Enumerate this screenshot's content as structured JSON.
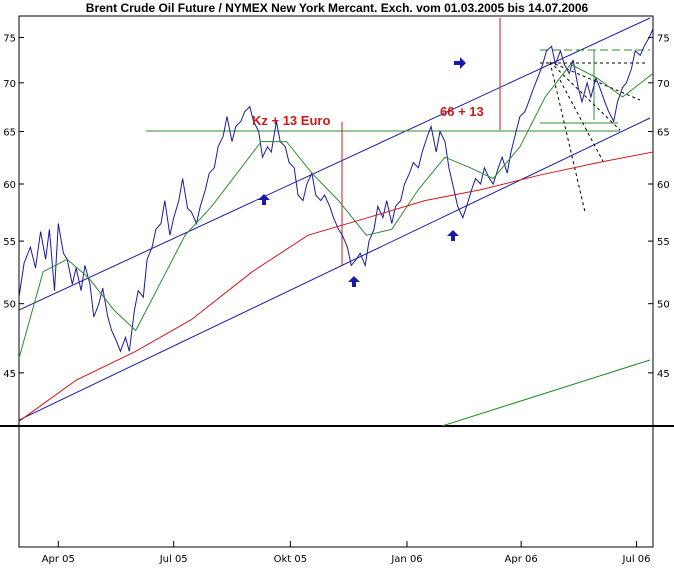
{
  "chart_data": {
    "type": "line",
    "title": "Brent Crude Oil Future / NYMEX New York Mercant. Exch. vom 01.03.2005 bis 14.07.2006",
    "x_tick_labels": [
      "Apr 05",
      "Jul 05",
      "Okt 05",
      "Jan 06",
      "Apr 06",
      "Jul 06"
    ],
    "x_tick_dates": [
      "2005-04-01",
      "2005-07-01",
      "2005-10-01",
      "2006-01-01",
      "2006-04-01",
      "2006-07-01"
    ],
    "xlim": [
      "2005-03-01",
      "2006-07-14"
    ],
    "y_scale": "log",
    "y_ticks": [
      45,
      50,
      55,
      60,
      65,
      70,
      75
    ],
    "ylim": [
      41.5,
      77.5
    ],
    "grid": false,
    "series": [
      {
        "color": "#1a1aa6",
        "points": [
          [
            "2005-03-01",
            50.5
          ],
          [
            "2005-03-05",
            53.2
          ],
          [
            "2005-03-10",
            54.5
          ],
          [
            "2005-03-14",
            52.8
          ],
          [
            "2005-03-18",
            55.8
          ],
          [
            "2005-03-22",
            53.5
          ],
          [
            "2005-03-25",
            56.0
          ],
          [
            "2005-03-29",
            51.0
          ],
          [
            "2005-04-01",
            56.5
          ],
          [
            "2005-04-05",
            54.0
          ],
          [
            "2005-04-08",
            53.5
          ],
          [
            "2005-04-12",
            51.5
          ],
          [
            "2005-04-15",
            52.8
          ],
          [
            "2005-04-19",
            51.0
          ],
          [
            "2005-04-22",
            53.0
          ],
          [
            "2005-04-26",
            51.5
          ],
          [
            "2005-04-29",
            49.0
          ],
          [
            "2005-05-03",
            50.0
          ],
          [
            "2005-05-06",
            51.2
          ],
          [
            "2005-05-10",
            49.0
          ],
          [
            "2005-05-13",
            48.0
          ],
          [
            "2005-05-17",
            47.2
          ],
          [
            "2005-05-20",
            46.5
          ],
          [
            "2005-05-24",
            47.5
          ],
          [
            "2005-05-27",
            46.5
          ],
          [
            "2005-05-31",
            49.5
          ],
          [
            "2005-06-03",
            51.0
          ],
          [
            "2005-06-07",
            50.5
          ],
          [
            "2005-06-10",
            53.5
          ],
          [
            "2005-06-14",
            54.5
          ],
          [
            "2005-06-17",
            56.0
          ],
          [
            "2005-06-21",
            56.5
          ],
          [
            "2005-06-24",
            58.5
          ],
          [
            "2005-06-28",
            55.5
          ],
          [
            "2005-07-01",
            57.0
          ],
          [
            "2005-07-05",
            58.5
          ],
          [
            "2005-07-08",
            60.5
          ],
          [
            "2005-07-12",
            57.8
          ],
          [
            "2005-07-15",
            57.5
          ],
          [
            "2005-07-19",
            56.5
          ],
          [
            "2005-07-22",
            58.0
          ],
          [
            "2005-07-26",
            59.5
          ],
          [
            "2005-07-29",
            61.0
          ],
          [
            "2005-08-02",
            61.5
          ],
          [
            "2005-08-05",
            63.5
          ],
          [
            "2005-08-09",
            64.5
          ],
          [
            "2005-08-12",
            66.5
          ],
          [
            "2005-08-16",
            64.0
          ],
          [
            "2005-08-19",
            65.5
          ],
          [
            "2005-08-23",
            66.0
          ],
          [
            "2005-08-26",
            67.0
          ],
          [
            "2005-08-30",
            67.5
          ],
          [
            "2005-09-02",
            66.0
          ],
          [
            "2005-09-06",
            65.0
          ],
          [
            "2005-09-09",
            62.5
          ],
          [
            "2005-09-13",
            63.5
          ],
          [
            "2005-09-16",
            63.0
          ],
          [
            "2005-09-20",
            66.0
          ],
          [
            "2005-09-23",
            64.0
          ],
          [
            "2005-09-27",
            63.5
          ],
          [
            "2005-09-30",
            62.0
          ],
          [
            "2005-10-04",
            61.5
          ],
          [
            "2005-10-07",
            59.0
          ],
          [
            "2005-10-11",
            58.5
          ],
          [
            "2005-10-14",
            60.0
          ],
          [
            "2005-10-18",
            61.0
          ],
          [
            "2005-10-21",
            59.0
          ],
          [
            "2005-10-25",
            58.5
          ],
          [
            "2005-10-28",
            59.0
          ],
          [
            "2005-11-01",
            58.0
          ],
          [
            "2005-11-04",
            57.0
          ],
          [
            "2005-11-08",
            56.0
          ],
          [
            "2005-11-11",
            55.5
          ],
          [
            "2005-11-15",
            54.5
          ],
          [
            "2005-11-18",
            53.0
          ],
          [
            "2005-11-22",
            53.5
          ],
          [
            "2005-11-25",
            54.0
          ],
          [
            "2005-11-29",
            53.0
          ],
          [
            "2005-12-02",
            55.0
          ],
          [
            "2005-12-06",
            56.0
          ],
          [
            "2005-12-09",
            58.0
          ],
          [
            "2005-12-13",
            57.0
          ],
          [
            "2005-12-16",
            58.5
          ],
          [
            "2005-12-20",
            56.5
          ],
          [
            "2005-12-23",
            58.0
          ],
          [
            "2005-12-27",
            58.5
          ],
          [
            "2005-12-30",
            60.0
          ],
          [
            "2006-01-03",
            61.0
          ],
          [
            "2006-01-06",
            62.0
          ],
          [
            "2006-01-10",
            61.5
          ],
          [
            "2006-01-13",
            63.0
          ],
          [
            "2006-01-17",
            64.5
          ],
          [
            "2006-01-20",
            65.5
          ],
          [
            "2006-01-24",
            63.0
          ],
          [
            "2006-01-27",
            65.0
          ],
          [
            "2006-01-31",
            64.0
          ],
          [
            "2006-02-03",
            61.5
          ],
          [
            "2006-02-07",
            59.5
          ],
          [
            "2006-02-10",
            58.0
          ],
          [
            "2006-02-14",
            57.0
          ],
          [
            "2006-02-17",
            58.0
          ],
          [
            "2006-02-21",
            59.5
          ],
          [
            "2006-02-24",
            60.5
          ],
          [
            "2006-02-28",
            60.0
          ],
          [
            "2006-03-03",
            61.5
          ],
          [
            "2006-03-07",
            60.5
          ],
          [
            "2006-03-10",
            60.0
          ],
          [
            "2006-03-14",
            61.5
          ],
          [
            "2006-03-17",
            62.5
          ],
          [
            "2006-03-21",
            61.0
          ],
          [
            "2006-03-24",
            63.0
          ],
          [
            "2006-03-28",
            65.0
          ],
          [
            "2006-03-31",
            66.5
          ],
          [
            "2006-04-04",
            67.0
          ],
          [
            "2006-04-07",
            68.0
          ],
          [
            "2006-04-11",
            69.5
          ],
          [
            "2006-04-14",
            70.5
          ],
          [
            "2006-04-18",
            72.0
          ],
          [
            "2006-04-21",
            73.5
          ],
          [
            "2006-04-25",
            74.0
          ],
          [
            "2006-04-28",
            72.0
          ],
          [
            "2006-05-02",
            73.5
          ],
          [
            "2006-05-05",
            72.0
          ],
          [
            "2006-05-09",
            71.0
          ],
          [
            "2006-05-12",
            72.5
          ],
          [
            "2006-05-16",
            69.5
          ],
          [
            "2006-05-19",
            68.0
          ],
          [
            "2006-05-23",
            70.0
          ],
          [
            "2006-05-26",
            68.5
          ],
          [
            "2006-05-30",
            70.5
          ],
          [
            "2006-06-02",
            69.5
          ],
          [
            "2006-06-06",
            68.0
          ],
          [
            "2006-06-09",
            67.0
          ],
          [
            "2006-06-13",
            66.0
          ],
          [
            "2006-06-16",
            68.0
          ],
          [
            "2006-06-20",
            69.5
          ],
          [
            "2006-06-23",
            70.0
          ],
          [
            "2006-06-27",
            71.5
          ],
          [
            "2006-06-30",
            73.5
          ],
          [
            "2006-07-04",
            73.0
          ],
          [
            "2006-07-07",
            74.0
          ],
          [
            "2006-07-11",
            75.0
          ],
          [
            "2006-07-14",
            76.0
          ]
        ]
      },
      {
        "color": "#2e8b2e",
        "points": [
          [
            "2005-03-01",
            46.0
          ],
          [
            "2005-03-20",
            52.5
          ],
          [
            "2005-04-08",
            53.5
          ],
          [
            "2005-04-25",
            52.0
          ],
          [
            "2005-05-15",
            49.5
          ],
          [
            "2005-06-01",
            48.0
          ],
          [
            "2005-06-20",
            51.5
          ],
          [
            "2005-07-10",
            55.5
          ],
          [
            "2005-07-31",
            58.0
          ],
          [
            "2005-08-20",
            61.0
          ],
          [
            "2005-09-08",
            64.0
          ],
          [
            "2005-09-28",
            64.0
          ],
          [
            "2005-10-18",
            61.0
          ],
          [
            "2005-11-08",
            58.5
          ],
          [
            "2005-11-30",
            55.5
          ],
          [
            "2005-12-20",
            56.0
          ],
          [
            "2006-01-10",
            59.5
          ],
          [
            "2006-01-31",
            62.5
          ],
          [
            "2006-02-20",
            61.5
          ],
          [
            "2006-03-10",
            60.5
          ],
          [
            "2006-03-31",
            63.5
          ],
          [
            "2006-04-20",
            68.5
          ],
          [
            "2006-05-10",
            72.0
          ],
          [
            "2006-05-31",
            70.5
          ],
          [
            "2006-06-20",
            68.5
          ],
          [
            "2006-07-14",
            71.0
          ]
        ]
      },
      {
        "color": "#cc1a1a",
        "points": [
          [
            "2005-03-01",
            41.8
          ],
          [
            "2005-04-15",
            44.5
          ],
          [
            "2005-06-01",
            46.5
          ],
          [
            "2005-07-15",
            48.8
          ],
          [
            "2005-09-01",
            52.5
          ],
          [
            "2005-10-15",
            55.5
          ],
          [
            "2005-12-01",
            57.0
          ],
          [
            "2006-01-15",
            58.5
          ],
          [
            "2006-03-01",
            59.5
          ],
          [
            "2006-04-15",
            60.8
          ],
          [
            "2006-06-01",
            62.0
          ],
          [
            "2006-07-14",
            63.0
          ]
        ]
      }
    ],
    "annotations": [
      {
        "text": "Kz + 13 Euro",
        "color": "#cc1a1a"
      },
      {
        "text": "66 + 13",
        "color": "#cc1a1a"
      }
    ]
  }
}
